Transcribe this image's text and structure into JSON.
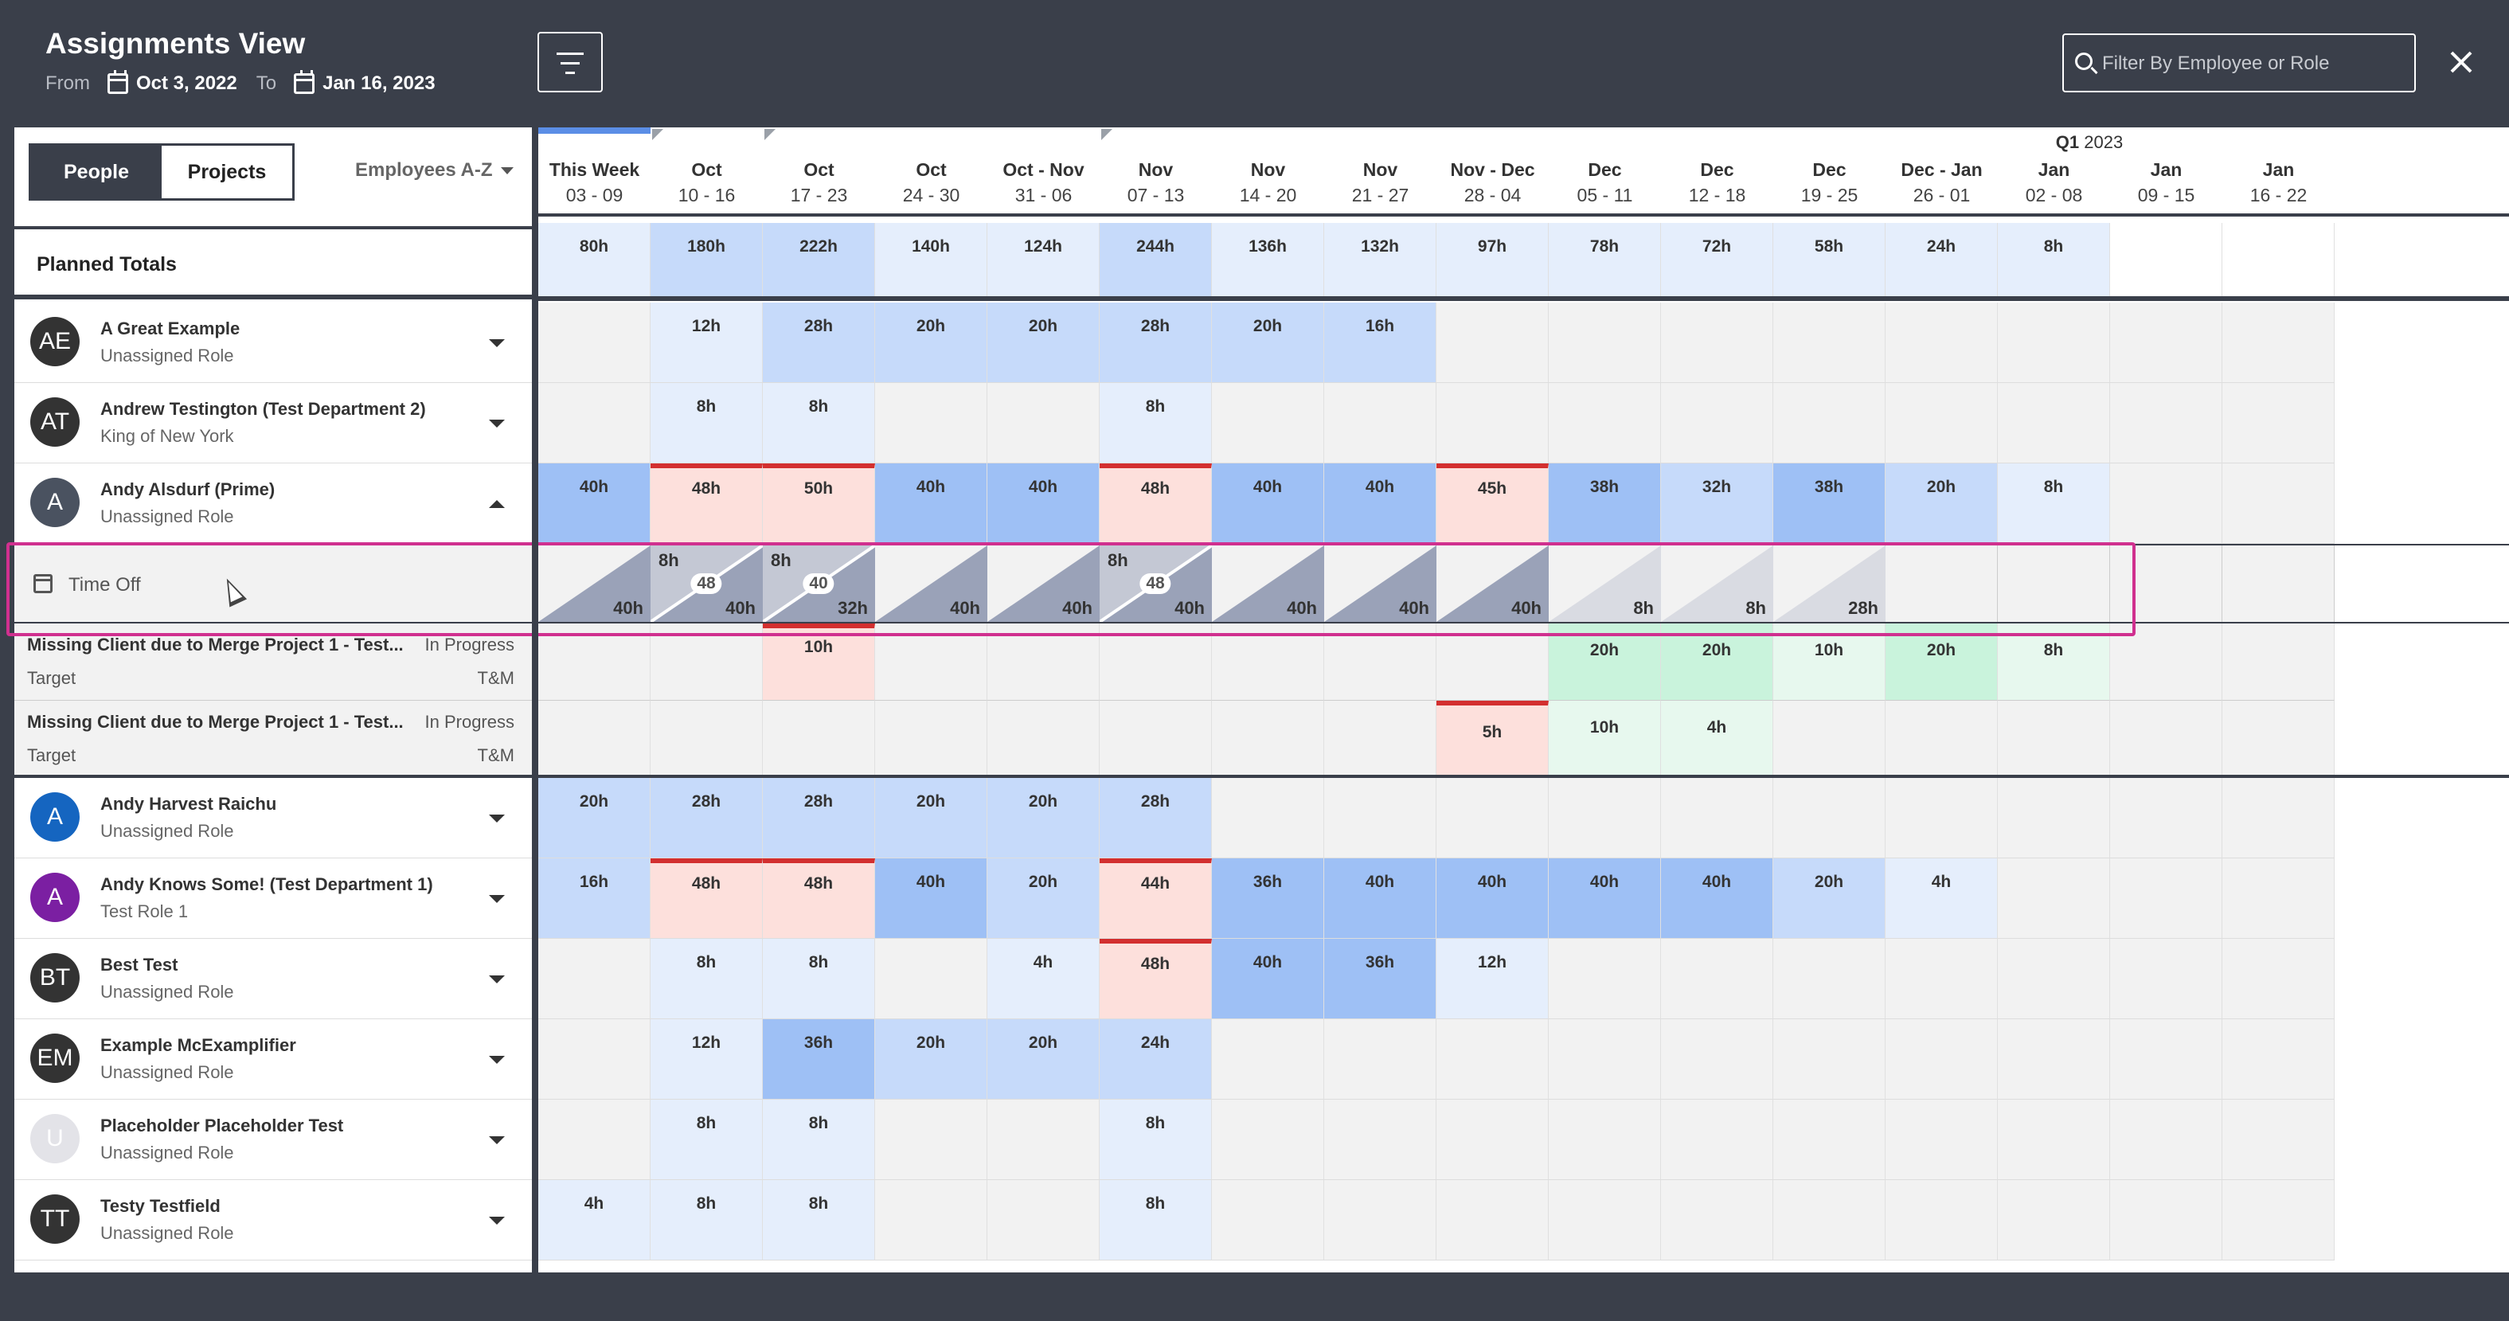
{
  "header": {
    "title": "Assignments View",
    "from_label": "From",
    "from_date": "Oct 3, 2022",
    "to_label": "To",
    "to_date": "Jan 16, 2023",
    "search_placeholder": "Filter By Employee or Role"
  },
  "toggle": {
    "people": "People",
    "projects": "Projects"
  },
  "sort": {
    "label": "Employees A-Z"
  },
  "totals_label": "Planned Totals",
  "quarter": {
    "q": "Q1",
    "year": "2023"
  },
  "weeks": [
    {
      "top": "This Week",
      "bottom": "03 - 09"
    },
    {
      "top": "Oct",
      "bottom": "10 - 16"
    },
    {
      "top": "Oct",
      "bottom": "17 - 23"
    },
    {
      "top": "Oct",
      "bottom": "24 - 30"
    },
    {
      "top": "Oct - Nov",
      "bottom": "31 - 06"
    },
    {
      "top": "Nov",
      "bottom": "07 - 13"
    },
    {
      "top": "Nov",
      "bottom": "14 - 20"
    },
    {
      "top": "Nov",
      "bottom": "21 - 27"
    },
    {
      "top": "Nov - Dec",
      "bottom": "28 - 04"
    },
    {
      "top": "Dec",
      "bottom": "05 - 11"
    },
    {
      "top": "Dec",
      "bottom": "12 - 18"
    },
    {
      "top": "Dec",
      "bottom": "19 - 25"
    },
    {
      "top": "Dec - Jan",
      "bottom": "26 - 01"
    },
    {
      "top": "Jan",
      "bottom": "02 - 08"
    },
    {
      "top": "Jan",
      "bottom": "09 - 15"
    },
    {
      "top": "Jan",
      "bottom": "16 - 22"
    }
  ],
  "totals": [
    "80h",
    "180h",
    "222h",
    "140h",
    "124h",
    "244h",
    "136h",
    "132h",
    "97h",
    "78h",
    "72h",
    "58h",
    "24h",
    "8h",
    "",
    ""
  ],
  "people": [
    {
      "initials": "AE",
      "avatar_color": "#333333",
      "name": "A Great Example",
      "role": "Unassigned Role",
      "expanded": false,
      "cells": [
        "",
        "12h",
        "28h",
        "20h",
        "20h",
        "28h",
        "20h",
        "16h",
        "",
        "",
        "",
        "",
        "",
        "",
        "",
        ""
      ]
    },
    {
      "initials": "AT",
      "avatar_color": "#333333",
      "name": "Andrew Testington (Test Department 2)",
      "role": "King of New York",
      "expanded": false,
      "cells": [
        "",
        "8h",
        "8h",
        "",
        "",
        "8h",
        "",
        "",
        "",
        "",
        "",
        "",
        "",
        "",
        "",
        ""
      ]
    },
    {
      "initials": "A",
      "avatar_color": "#4a5260",
      "name": "Andy Alsdurf (Prime)",
      "role": "Unassigned Role",
      "expanded": true,
      "cells": [
        "40h",
        "48h",
        "50h",
        "40h",
        "40h",
        "48h",
        "40h",
        "40h",
        "45h",
        "38h",
        "32h",
        "38h",
        "20h",
        "8h",
        "",
        ""
      ]
    }
  ],
  "time_off": {
    "label": "Time Off",
    "cells": [
      {
        "top": "",
        "mid": "",
        "bottom": "40h"
      },
      {
        "top": "8h",
        "mid": "48",
        "bottom": "40h"
      },
      {
        "top": "8h",
        "mid": "40",
        "bottom": "32h"
      },
      {
        "top": "",
        "mid": "",
        "bottom": "40h"
      },
      {
        "top": "",
        "mid": "",
        "bottom": "40h"
      },
      {
        "top": "8h",
        "mid": "48",
        "bottom": "40h"
      },
      {
        "top": "",
        "mid": "",
        "bottom": "40h"
      },
      {
        "top": "",
        "mid": "",
        "bottom": "40h"
      },
      {
        "top": "",
        "mid": "",
        "bottom": "40h"
      },
      {
        "top": "",
        "mid": "",
        "bottom": "8h"
      },
      {
        "top": "",
        "mid": "",
        "bottom": "8h"
      },
      {
        "top": "",
        "mid": "",
        "bottom": "28h"
      }
    ]
  },
  "projects": [
    {
      "name": "Missing Client due to Merge Project 1 - Test...",
      "status": "In Progress",
      "target": "Target",
      "type": "T&M",
      "cells": [
        "",
        "",
        "10h",
        "",
        "",
        "",
        "",
        "",
        "",
        "20h",
        "20h",
        "10h",
        "20h",
        "8h",
        "",
        ""
      ]
    },
    {
      "name": "Missing Client due to Merge Project 1 - Test...",
      "status": "In Progress",
      "target": "Target",
      "type": "T&M",
      "cells": [
        "",
        "",
        "",
        "",
        "",
        "",
        "",
        "",
        "5h",
        "10h",
        "4h",
        "",
        "",
        "",
        "",
        ""
      ]
    }
  ],
  "people2": [
    {
      "initials": "A",
      "avatar_color": "#1565c0",
      "name": "Andy Harvest Raichu",
      "role": "Unassigned Role",
      "cells": [
        "20h",
        "28h",
        "28h",
        "20h",
        "20h",
        "28h",
        "",
        "",
        "",
        "",
        "",
        "",
        "",
        "",
        "",
        ""
      ]
    },
    {
      "initials": "A",
      "avatar_color": "#7b1fa2",
      "name": "Andy Knows Some! (Test Department 1)",
      "role": "Test Role 1",
      "cells": [
        "16h",
        "48h",
        "48h",
        "40h",
        "20h",
        "44h",
        "36h",
        "40h",
        "40h",
        "40h",
        "40h",
        "20h",
        "4h",
        "",
        "",
        ""
      ]
    },
    {
      "initials": "BT",
      "avatar_color": "#333333",
      "name": "Best Test",
      "role": "Unassigned Role",
      "cells": [
        "",
        "8h",
        "8h",
        "",
        "4h",
        "48h",
        "40h",
        "36h",
        "12h",
        "",
        "",
        "",
        "",
        "",
        "",
        ""
      ]
    },
    {
      "initials": "EM",
      "avatar_color": "#333333",
      "name": "Example McExamplifier",
      "role": "Unassigned Role",
      "cells": [
        "",
        "12h",
        "36h",
        "20h",
        "20h",
        "24h",
        "",
        "",
        "",
        "",
        "",
        "",
        "",
        "",
        "",
        ""
      ]
    },
    {
      "initials": "U",
      "avatar_color": "#e3e3e8",
      "name": "Placeholder Placeholder Test",
      "role": "Unassigned Role",
      "cells": [
        "",
        "8h",
        "8h",
        "",
        "",
        "8h",
        "",
        "",
        "",
        "",
        "",
        "",
        "",
        "",
        "",
        ""
      ]
    },
    {
      "initials": "TT",
      "avatar_color": "#333333",
      "name": "Testy Testfield",
      "role": "Unassigned Role",
      "cells": [
        "4h",
        "8h",
        "8h",
        "",
        "",
        "8h",
        "",
        "",
        "",
        "",
        "",
        "",
        "",
        "",
        "",
        ""
      ]
    }
  ],
  "colors": {
    "over": "#fde0dc",
    "blue_dark": "#9ec0f5",
    "blue_mid": "#c6dafa",
    "blue_light": "#e5eefc",
    "green_mid": "#c9f3dc",
    "green_light": "#e7f8ee",
    "red": "#d32f2f",
    "dark": "#3a3f4a"
  }
}
